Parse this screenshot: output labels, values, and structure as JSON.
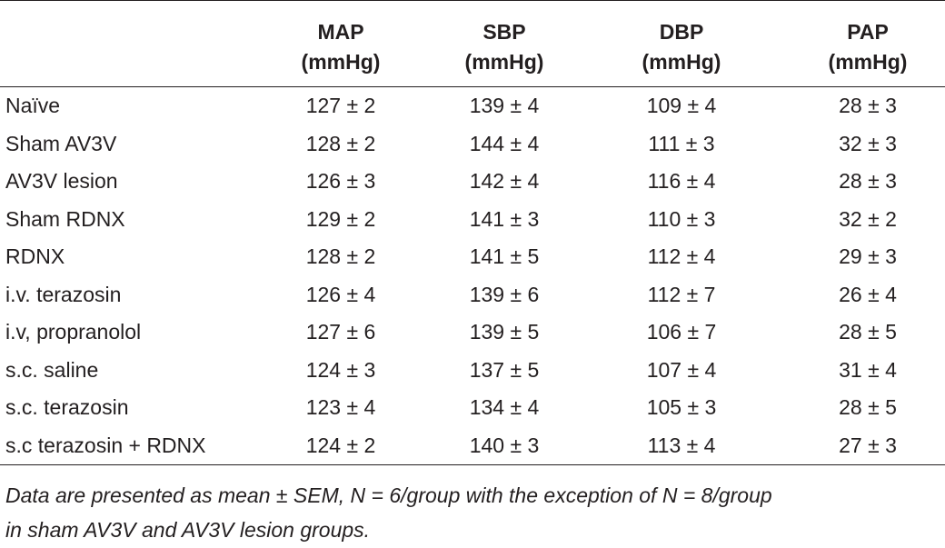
{
  "table": {
    "columns": [
      {
        "name": "MAP",
        "unit": "(mmHg)"
      },
      {
        "name": "SBP",
        "unit": "(mmHg)"
      },
      {
        "name": "DBP",
        "unit": "(mmHg)"
      },
      {
        "name": "PAP",
        "unit": "(mmHg)"
      }
    ],
    "rows": [
      {
        "label": "Naïve",
        "map": "127 ± 2",
        "sbp": "139 ± 4",
        "dbp": "109 ± 4",
        "pap": "28 ± 3"
      },
      {
        "label": "Sham AV3V",
        "map": "128 ± 2",
        "sbp": "144 ± 4",
        "dbp": "111 ± 3",
        "pap": "32 ± 3"
      },
      {
        "label": "AV3V lesion",
        "map": "126 ± 3",
        "sbp": "142 ± 4",
        "dbp": "116 ± 4",
        "pap": "28 ± 3"
      },
      {
        "label": "Sham RDNX",
        "map": "129 ± 2",
        "sbp": "141 ± 3",
        "dbp": "110 ± 3",
        "pap": "32 ± 2"
      },
      {
        "label": "RDNX",
        "map": "128 ± 2",
        "sbp": "141 ± 5",
        "dbp": "112 ± 4",
        "pap": "29 ± 3"
      },
      {
        "label": "i.v. terazosin",
        "map": "126 ± 4",
        "sbp": "139 ± 6",
        "dbp": "112 ± 7",
        "pap": "26 ± 4"
      },
      {
        "label": "i.v, propranolol",
        "map": "127 ± 6",
        "sbp": "139 ± 5",
        "dbp": "106 ± 7",
        "pap": "28 ± 5"
      },
      {
        "label": "s.c. saline",
        "map": "124 ± 3",
        "sbp": "137 ± 5",
        "dbp": "107 ± 4",
        "pap": "31 ± 4"
      },
      {
        "label": "s.c. terazosin",
        "map": "123 ± 4",
        "sbp": "134 ± 4",
        "dbp": "105 ± 3",
        "pap": "28 ± 5"
      },
      {
        "label": "s.c terazosin + RDNX",
        "map": "124 ± 2",
        "sbp": "140 ± 3",
        "dbp": "113 ± 4",
        "pap": "27 ± 3"
      }
    ]
  },
  "footnote": {
    "line1": "Data are presented as mean ± SEM, N = 6/group with the exception of N = 8/group",
    "line2": "in sham AV3V and AV3V lesion groups."
  }
}
